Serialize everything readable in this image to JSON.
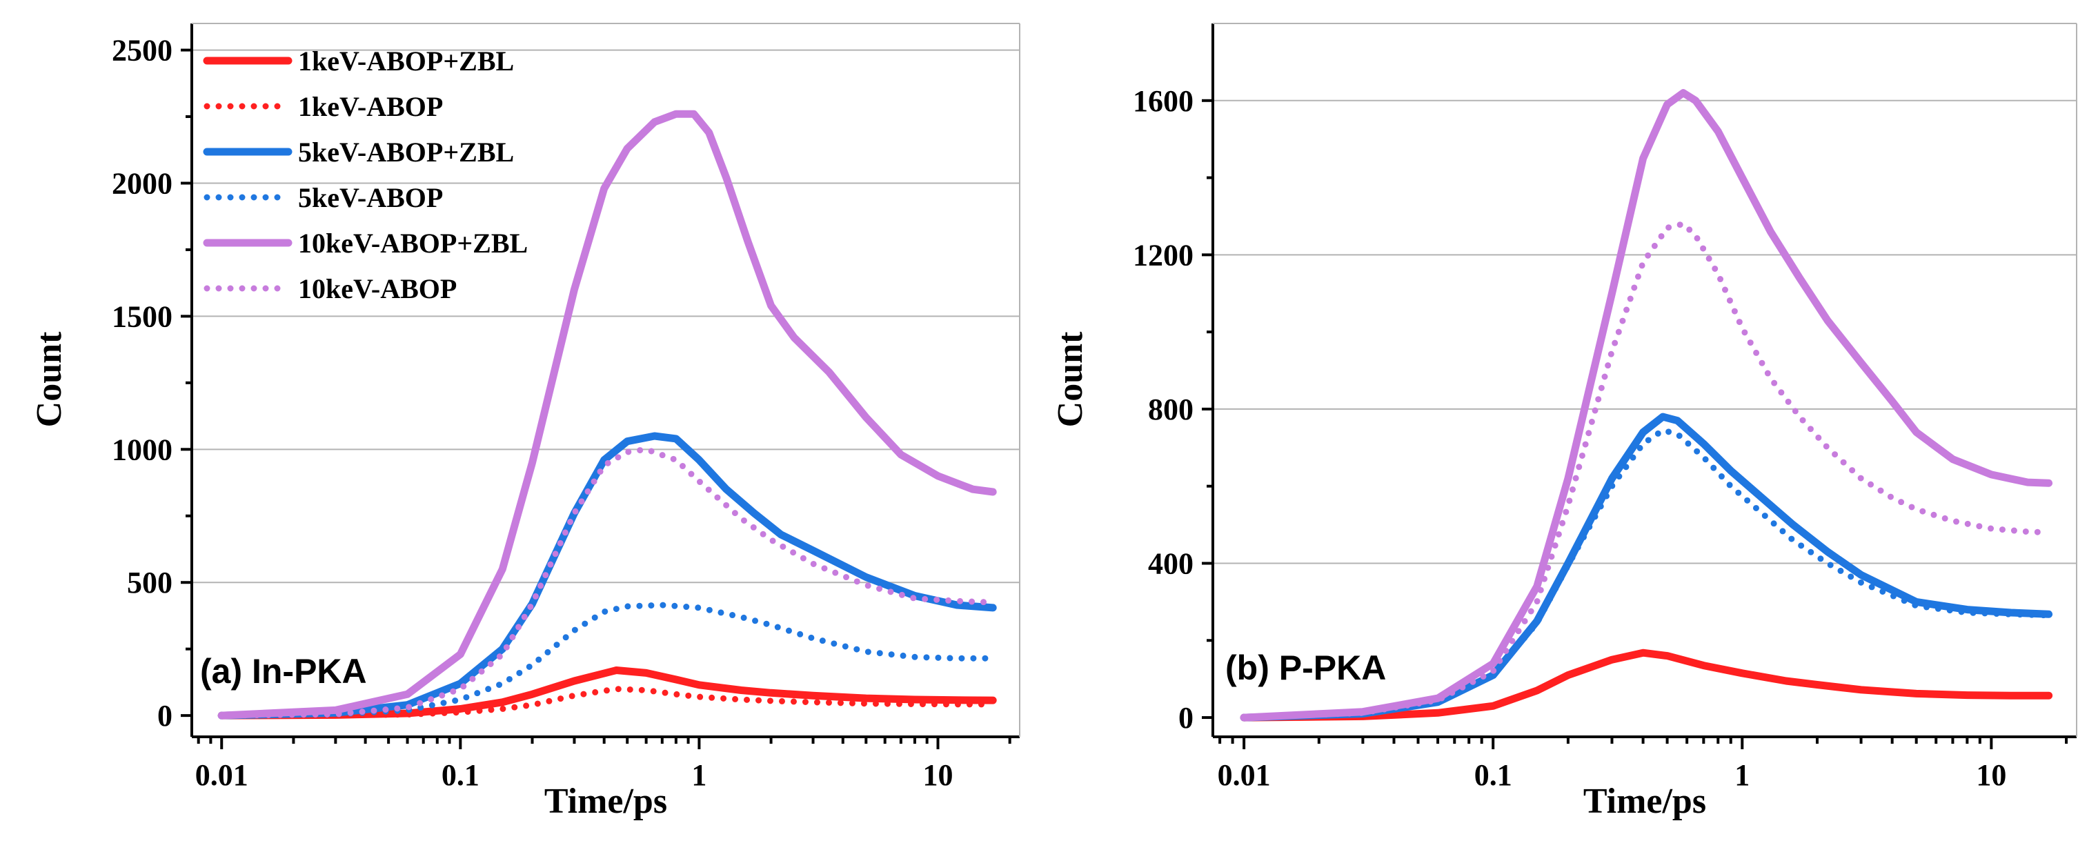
{
  "colors": {
    "red": "#ff2020",
    "blue": "#1f77e0",
    "purple": "#c77cdd"
  },
  "chart_data": [
    {
      "type": "line",
      "panel_label": "(a) In-PKA",
      "xlabel": "Time/ps",
      "ylabel": "Count",
      "xscale": "log",
      "xlim": [
        0.0075,
        22
      ],
      "ylim": [
        -80,
        2600
      ],
      "xticks": [
        0.01,
        0.1,
        1,
        10
      ],
      "xtick_labels": [
        "0.01",
        "0.1",
        "1",
        "10"
      ],
      "yticks": [
        0,
        500,
        1000,
        1500,
        2000,
        2500
      ],
      "ytick_labels": [
        "0",
        "500",
        "1000",
        "1500",
        "2000",
        "2500"
      ],
      "grid": true,
      "legend_position": "top-left",
      "series": [
        {
          "name": "1keV-ABOP+ZBL",
          "color": "red",
          "style": "solid",
          "x": [
            0.01,
            0.03,
            0.06,
            0.1,
            0.15,
            0.2,
            0.3,
            0.45,
            0.6,
            0.8,
            1.0,
            1.5,
            2,
            3,
            5,
            8,
            12,
            17
          ],
          "y": [
            0,
            2,
            8,
            25,
            50,
            80,
            130,
            170,
            160,
            135,
            115,
            95,
            85,
            75,
            65,
            60,
            58,
            57
          ]
        },
        {
          "name": "1keV-ABOP",
          "color": "red",
          "style": "dotted",
          "x": [
            0.01,
            0.03,
            0.06,
            0.1,
            0.15,
            0.2,
            0.3,
            0.45,
            0.6,
            0.8,
            1.0,
            1.5,
            2,
            3,
            5,
            8,
            12,
            17
          ],
          "y": [
            0,
            1,
            4,
            12,
            25,
            40,
            75,
            100,
            95,
            80,
            70,
            60,
            55,
            50,
            45,
            43,
            42,
            42
          ]
        },
        {
          "name": "5keV-ABOP+ZBL",
          "color": "blue",
          "style": "solid",
          "x": [
            0.01,
            0.03,
            0.06,
            0.1,
            0.15,
            0.2,
            0.3,
            0.4,
            0.5,
            0.65,
            0.8,
            1.0,
            1.3,
            1.7,
            2.2,
            3,
            5,
            8,
            12,
            17
          ],
          "y": [
            0,
            10,
            40,
            120,
            250,
            420,
            760,
            960,
            1030,
            1050,
            1040,
            960,
            850,
            760,
            680,
            620,
            520,
            450,
            415,
            405
          ]
        },
        {
          "name": "5keV-ABOP",
          "color": "blue",
          "style": "dotted",
          "x": [
            0.01,
            0.03,
            0.06,
            0.1,
            0.15,
            0.2,
            0.3,
            0.4,
            0.5,
            0.7,
            1.0,
            1.5,
            2.0,
            3,
            5,
            8,
            12,
            17
          ],
          "y": [
            0,
            5,
            20,
            60,
            120,
            190,
            320,
            390,
            410,
            415,
            405,
            370,
            340,
            290,
            240,
            220,
            215,
            215
          ]
        },
        {
          "name": "10keV-ABOP+ZBL",
          "color": "purple",
          "style": "solid",
          "x": [
            0.01,
            0.03,
            0.06,
            0.1,
            0.15,
            0.2,
            0.3,
            0.4,
            0.5,
            0.65,
            0.8,
            0.95,
            1.1,
            1.3,
            1.6,
            2.0,
            2.5,
            3.5,
            5,
            7,
            10,
            14,
            17
          ],
          "y": [
            0,
            20,
            80,
            230,
            550,
            950,
            1600,
            1980,
            2130,
            2230,
            2260,
            2260,
            2190,
            2020,
            1780,
            1540,
            1420,
            1290,
            1120,
            980,
            900,
            850,
            840
          ]
        },
        {
          "name": "10keV-ABOP",
          "color": "purple",
          "style": "dotted",
          "x": [
            0.01,
            0.03,
            0.06,
            0.1,
            0.15,
            0.2,
            0.3,
            0.4,
            0.5,
            0.6,
            0.8,
            1.0,
            1.5,
            2.0,
            3,
            5,
            8,
            12,
            17
          ],
          "y": [
            0,
            5,
            30,
            100,
            230,
            420,
            760,
            940,
            990,
            1000,
            960,
            880,
            740,
            660,
            570,
            490,
            440,
            430,
            425
          ]
        }
      ]
    },
    {
      "type": "line",
      "panel_label": "(b) P-PKA",
      "xlabel": "Time/ps",
      "ylabel": "Count",
      "xscale": "log",
      "xlim": [
        0.0075,
        22
      ],
      "ylim": [
        -50,
        1800
      ],
      "xticks": [
        0.01,
        0.1,
        1,
        10
      ],
      "xtick_labels": [
        "0.01",
        "0.1",
        "1",
        "10"
      ],
      "yticks": [
        0,
        400,
        800,
        1200,
        1600
      ],
      "ytick_labels": [
        "0",
        "400",
        "800",
        "1200",
        "1600"
      ],
      "grid": true,
      "series": [
        {
          "name": "1keV-ABOP+ZBL",
          "color": "red",
          "style": "solid",
          "x": [
            0.01,
            0.03,
            0.06,
            0.1,
            0.15,
            0.2,
            0.3,
            0.4,
            0.5,
            0.7,
            1.0,
            1.5,
            2,
            3,
            5,
            8,
            12,
            17
          ],
          "y": [
            0,
            3,
            12,
            30,
            70,
            110,
            150,
            168,
            160,
            135,
            115,
            95,
            85,
            72,
            62,
            58,
            57,
            57
          ]
        },
        {
          "name": "1keV-ABOP",
          "color": "red",
          "style": "dotted",
          "x": [
            0.01,
            0.03,
            0.06,
            0.1,
            0.15,
            0.2,
            0.3,
            0.4,
            0.5,
            0.7,
            1.0,
            1.5,
            2,
            3,
            5,
            8,
            12,
            17
          ],
          "y": [
            0,
            3,
            12,
            30,
            70,
            110,
            150,
            168,
            160,
            135,
            115,
            95,
            85,
            72,
            62,
            58,
            57,
            57
          ]
        },
        {
          "name": "5keV-ABOP+ZBL",
          "color": "blue",
          "style": "solid",
          "x": [
            0.01,
            0.03,
            0.06,
            0.1,
            0.15,
            0.2,
            0.3,
            0.4,
            0.48,
            0.55,
            0.7,
            0.9,
            1.2,
            1.6,
            2.2,
            3,
            5,
            8,
            12,
            17
          ],
          "y": [
            0,
            10,
            40,
            110,
            250,
            400,
            620,
            740,
            780,
            770,
            710,
            640,
            570,
            500,
            430,
            370,
            300,
            280,
            272,
            268
          ]
        },
        {
          "name": "5keV-ABOP",
          "color": "blue",
          "style": "dotted",
          "x": [
            0.01,
            0.03,
            0.06,
            0.1,
            0.15,
            0.2,
            0.3,
            0.4,
            0.48,
            0.55,
            0.7,
            0.9,
            1.2,
            1.6,
            2.2,
            3,
            5,
            8,
            12,
            17
          ],
          "y": [
            0,
            10,
            40,
            110,
            245,
            395,
            600,
            710,
            745,
            735,
            675,
            600,
            530,
            460,
            400,
            350,
            290,
            272,
            268,
            265
          ]
        },
        {
          "name": "10keV-ABOP+ZBL",
          "color": "purple",
          "style": "solid",
          "x": [
            0.01,
            0.03,
            0.06,
            0.1,
            0.15,
            0.2,
            0.3,
            0.4,
            0.5,
            0.58,
            0.65,
            0.8,
            1.0,
            1.3,
            1.7,
            2.2,
            3,
            4,
            5,
            7,
            10,
            14,
            17
          ],
          "y": [
            0,
            15,
            50,
            140,
            340,
            620,
            1100,
            1450,
            1590,
            1620,
            1600,
            1520,
            1400,
            1260,
            1140,
            1030,
            920,
            820,
            740,
            670,
            630,
            610,
            608
          ]
        },
        {
          "name": "10keV-ABOP",
          "color": "purple",
          "style": "dotted",
          "x": [
            0.01,
            0.03,
            0.06,
            0.1,
            0.15,
            0.2,
            0.3,
            0.4,
            0.5,
            0.58,
            0.65,
            0.8,
            1.0,
            1.3,
            1.7,
            2.2,
            3,
            4,
            5,
            7,
            10,
            14,
            17
          ],
          "y": [
            0,
            12,
            45,
            120,
            300,
            550,
            950,
            1180,
            1270,
            1280,
            1250,
            1150,
            1010,
            880,
            780,
            700,
            620,
            570,
            540,
            510,
            490,
            482,
            480
          ]
        }
      ]
    }
  ]
}
